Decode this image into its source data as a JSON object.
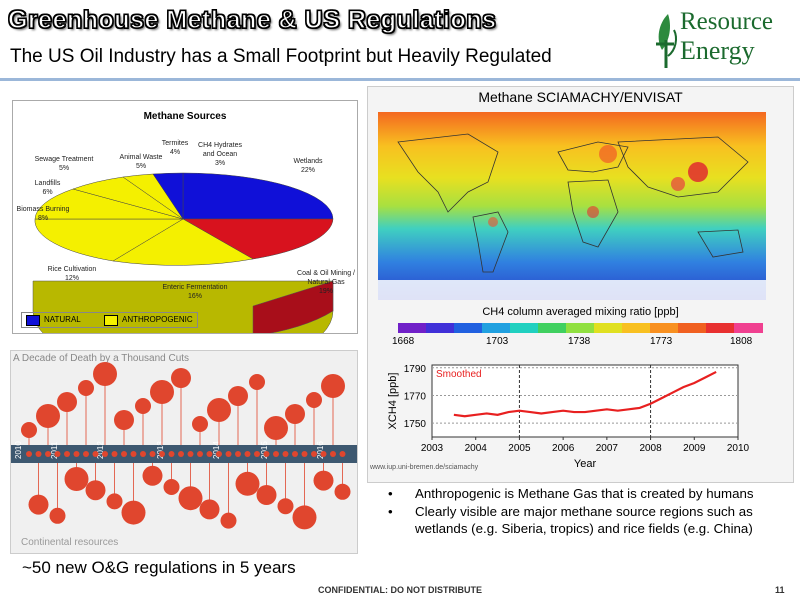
{
  "header": {
    "title": "Greenhouse Methane & US Regulations",
    "subtitle": "The US Oil Industry has a Small Footprint but Heavily Regulated",
    "logo_line1": "Resource",
    "logo_line2": "Energy"
  },
  "pie": {
    "title": "Methane Sources",
    "slices": [
      {
        "label": "Wetlands",
        "value": "22%",
        "group": "NATURAL"
      },
      {
        "label": "Coal & Oil Mining / Natural Gas",
        "value": "19%",
        "group": "ANTHROPOGENIC"
      },
      {
        "label": "Enteric Fermentation",
        "value": "16%",
        "group": "ANTHROPOGENIC"
      },
      {
        "label": "Rice Cultivation",
        "value": "12%",
        "group": "ANTHROPOGENIC"
      },
      {
        "label": "Biomass Burning",
        "value": "8%",
        "group": "ANTHROPOGENIC"
      },
      {
        "label": "Landfills",
        "value": "6%",
        "group": "ANTHROPOGENIC"
      },
      {
        "label": "Sewage Treatment",
        "value": "5%",
        "group": "ANTHROPOGENIC"
      },
      {
        "label": "Animal Waste",
        "value": "5%",
        "group": "ANTHROPOGENIC"
      },
      {
        "label": "Termites",
        "value": "4%",
        "group": "NATURAL"
      },
      {
        "label": "CH4 Hydrates and Ocean",
        "value": "3%",
        "group": "NATURAL"
      }
    ],
    "legend": [
      {
        "label": "NATURAL",
        "color": "#1010d8"
      },
      {
        "label": "ANTHROPOGENIC",
        "color": "#f4f000"
      }
    ]
  },
  "map": {
    "title": "Methane SCIAMACHY/ENVISAT",
    "colorbar_label": "CH4 column averaged mixing ratio [ppb]",
    "colorbar_ticks": [
      "1668",
      "1703",
      "1738",
      "1773",
      "1808"
    ],
    "source_url": "www.iup.uni-bremen.de/sciamachy"
  },
  "chart_data": {
    "type": "line",
    "title": "",
    "xlabel": "Year",
    "ylabel": "XCH4 [ppb]",
    "xlim": [
      2003,
      2010
    ],
    "ylim": [
      1740,
      1792
    ],
    "x_ticks": [
      "2003",
      "2004",
      "2005",
      "2006",
      "2007",
      "2008",
      "2009",
      "2010"
    ],
    "y_ticks": [
      "1790",
      "1770",
      "1750"
    ],
    "series": [
      {
        "name": "Smoothed",
        "color": "#e82020",
        "x": [
          2003.5,
          2003.75,
          2004.0,
          2004.25,
          2004.5,
          2004.75,
          2005.0,
          2005.25,
          2005.5,
          2005.75,
          2006.0,
          2006.25,
          2006.5,
          2006.75,
          2007.0,
          2007.25,
          2007.5,
          2007.75,
          2008.0,
          2008.25,
          2008.5,
          2008.75,
          2009.0,
          2009.25,
          2009.5
        ],
        "y": [
          1756,
          1755,
          1756,
          1757,
          1756,
          1758,
          1759,
          1758,
          1757,
          1758,
          1759,
          1758,
          1758,
          1759,
          1760,
          1759,
          1760,
          1761,
          1764,
          1768,
          1772,
          1776,
          1779,
          1783,
          1787
        ]
      }
    ],
    "vlines": [
      2005,
      2008
    ]
  },
  "deaths": {
    "title": "A Decade of Death by a Thousand Cuts",
    "years": [
      "2010",
      "2011",
      "2012",
      "2013",
      "2014",
      "2015",
      "2016"
    ],
    "credit": "Continental resources"
  },
  "callout": "~50 new O&G regulations in 5 years",
  "bullets": [
    "Anthropogenic is Methane Gas that is created by humans",
    "Clearly visible are major methane source regions such as wetlands (e.g. Siberia, tropics) and rice fields (e.g. China)"
  ],
  "footer": {
    "text": "CONFIDENTIAL:  DO NOT DISTRIBUTE",
    "page": "11"
  }
}
